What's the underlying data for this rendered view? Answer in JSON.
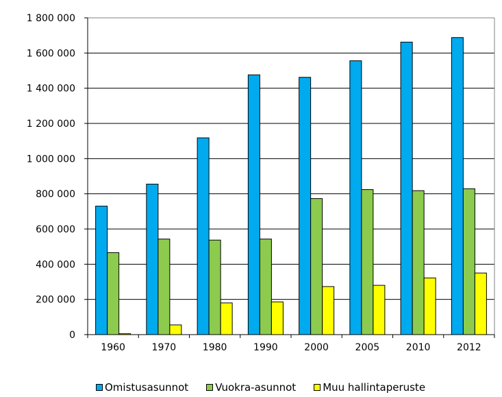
{
  "chart_data": {
    "type": "bar",
    "categories": [
      "1960",
      "1970",
      "1980",
      "1990",
      "2000",
      "2005",
      "2010",
      "2012"
    ],
    "series": [
      {
        "name": "Omistusasunnot",
        "color": "#00aaee",
        "values": [
          730000,
          855000,
          1118000,
          1476000,
          1462000,
          1556000,
          1662000,
          1688000
        ]
      },
      {
        "name": "Vuokra-asunnot",
        "color": "#8ccb4e",
        "values": [
          466000,
          543000,
          537000,
          543000,
          773000,
          824000,
          818000,
          829000
        ]
      },
      {
        "name": "Muu hallintaperuste",
        "color": "#ffff00",
        "values": [
          5000,
          55000,
          180000,
          186000,
          273000,
          280000,
          322000,
          350000
        ]
      }
    ],
    "yticks": [
      "0",
      "200 000",
      "400 000",
      "600 000",
      "800 000",
      "1 000 000",
      "1 200 000",
      "1 400 000",
      "1 600 000",
      "1 800 000"
    ],
    "ylim": [
      0,
      1800000
    ],
    "grid": true,
    "legend_position": "bottom"
  }
}
